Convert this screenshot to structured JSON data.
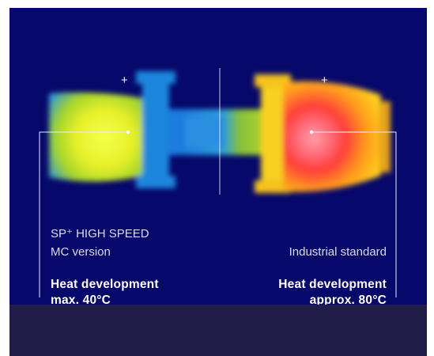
{
  "left_product": {
    "name_line1": "SP⁺ HIGH SPEED",
    "name_line2": "MC version",
    "heat_title": "Heat development",
    "heat_value": "max. 40°C"
  },
  "right_product": {
    "name_line1": "Industrial standard",
    "heat_title": "Heat development",
    "heat_value": "approx. 80°C"
  },
  "markers": [
    "+",
    "+"
  ],
  "colors": {
    "background": "#06086a",
    "footer_band": "#201e49",
    "text_light": "#d9dbf2",
    "text_bold": "#ffffff"
  }
}
